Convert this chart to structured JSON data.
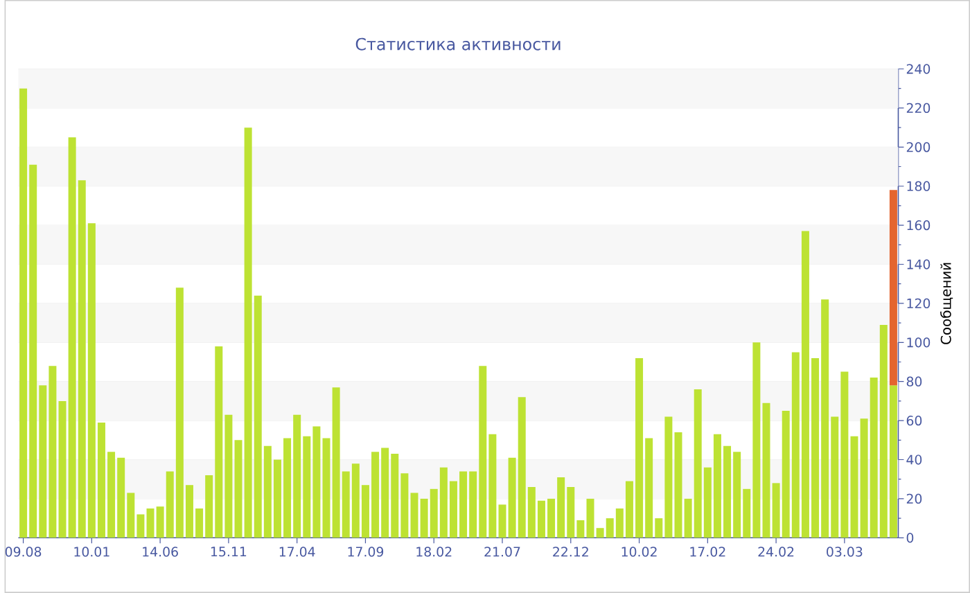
{
  "chart_data": {
    "type": "bar",
    "title": "Статистика активности",
    "ylabel": "Сообщений",
    "categories": [
      "09.08",
      null,
      null,
      null,
      null,
      null,
      null,
      "10.01",
      null,
      null,
      null,
      null,
      null,
      null,
      "14.06",
      null,
      null,
      null,
      null,
      null,
      null,
      "15.11",
      null,
      null,
      null,
      null,
      null,
      null,
      "17.04",
      null,
      null,
      null,
      null,
      null,
      null,
      "17.09",
      null,
      null,
      null,
      null,
      null,
      null,
      "18.02",
      null,
      null,
      null,
      null,
      null,
      null,
      "21.07",
      null,
      null,
      null,
      null,
      null,
      null,
      "22.12",
      null,
      null,
      null,
      null,
      null,
      null,
      "10.02",
      null,
      null,
      null,
      null,
      null,
      null,
      "17.02",
      null,
      null,
      null,
      null,
      null,
      null,
      "24.02",
      null,
      null,
      null,
      null,
      null,
      null,
      "03.03",
      null,
      null,
      null,
      null,
      null
    ],
    "stacked": true,
    "series": [
      {
        "color": "#bde233",
        "values": [
          230,
          191,
          78,
          88,
          70,
          205,
          183,
          161,
          59,
          44,
          41,
          23,
          12,
          15,
          16,
          34,
          128,
          27,
          15,
          32,
          98,
          63,
          50,
          210,
          124,
          47,
          40,
          51,
          63,
          52,
          57,
          51,
          77,
          34,
          38,
          27,
          44,
          46,
          43,
          33,
          23,
          20,
          25,
          36,
          29,
          34,
          34,
          88,
          53,
          17,
          41,
          72,
          26,
          19,
          20,
          31,
          26,
          9,
          20,
          5,
          10,
          15,
          29,
          92,
          51,
          10,
          62,
          54,
          20,
          76,
          36,
          53,
          47,
          44,
          25,
          100,
          69,
          28,
          65,
          95,
          157,
          92,
          122,
          62,
          85,
          52,
          61,
          82,
          109,
          78
        ]
      },
      {
        "color": "#e4652f",
        "values": [
          null,
          null,
          null,
          null,
          null,
          null,
          null,
          null,
          null,
          null,
          null,
          null,
          null,
          null,
          null,
          null,
          null,
          null,
          null,
          null,
          null,
          null,
          null,
          null,
          null,
          null,
          null,
          null,
          null,
          null,
          null,
          null,
          null,
          null,
          null,
          null,
          null,
          null,
          null,
          null,
          null,
          null,
          null,
          null,
          null,
          null,
          null,
          null,
          null,
          null,
          null,
          null,
          null,
          null,
          null,
          null,
          null,
          null,
          null,
          null,
          null,
          null,
          null,
          null,
          null,
          null,
          null,
          null,
          null,
          null,
          null,
          null,
          null,
          null,
          null,
          null,
          null,
          null,
          null,
          null,
          null,
          null,
          null,
          null,
          null,
          null,
          null,
          null,
          null,
          100
        ]
      }
    ],
    "ylim": [
      0,
      240
    ],
    "yticks": [
      0,
      20,
      40,
      60,
      80,
      100,
      120,
      140,
      160,
      180,
      200,
      220,
      240
    ],
    "grid": "y"
  }
}
